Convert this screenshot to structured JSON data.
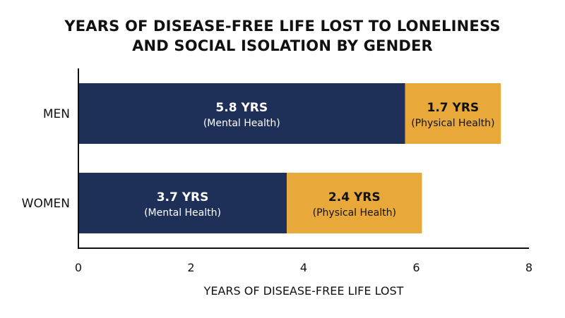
{
  "chart_data": {
    "type": "bar",
    "orientation": "horizontal",
    "stacked": true,
    "title_lines": [
      "YEARS OF DISEASE-FREE LIFE LOST TO LONELINESS",
      "AND SOCIAL ISOLATION BY GENDER"
    ],
    "categories": [
      "MEN",
      "WOMEN"
    ],
    "series": [
      {
        "key": "mental",
        "color": "#1e2f58",
        "text_color": "#ffffff",
        "values": [
          5.8,
          3.7
        ],
        "value_labels": [
          "5.8 YRS",
          "3.7 YRS"
        ],
        "sub_label": "(Mental Health)"
      },
      {
        "key": "physical",
        "color": "#e9a93a",
        "text_color": "#111111",
        "values": [
          1.7,
          2.4
        ],
        "value_labels": [
          "1.7 YRS",
          "2.4 YRS"
        ],
        "sub_label": "(Physical Health)"
      }
    ],
    "xlabel": "YEARS OF DISEASE-FREE LIFE LOST",
    "ylabel": "",
    "xlim": [
      0,
      8
    ],
    "xticks": [
      "0",
      "2",
      "4",
      "6",
      "8"
    ],
    "grid": false,
    "legend": "none"
  }
}
